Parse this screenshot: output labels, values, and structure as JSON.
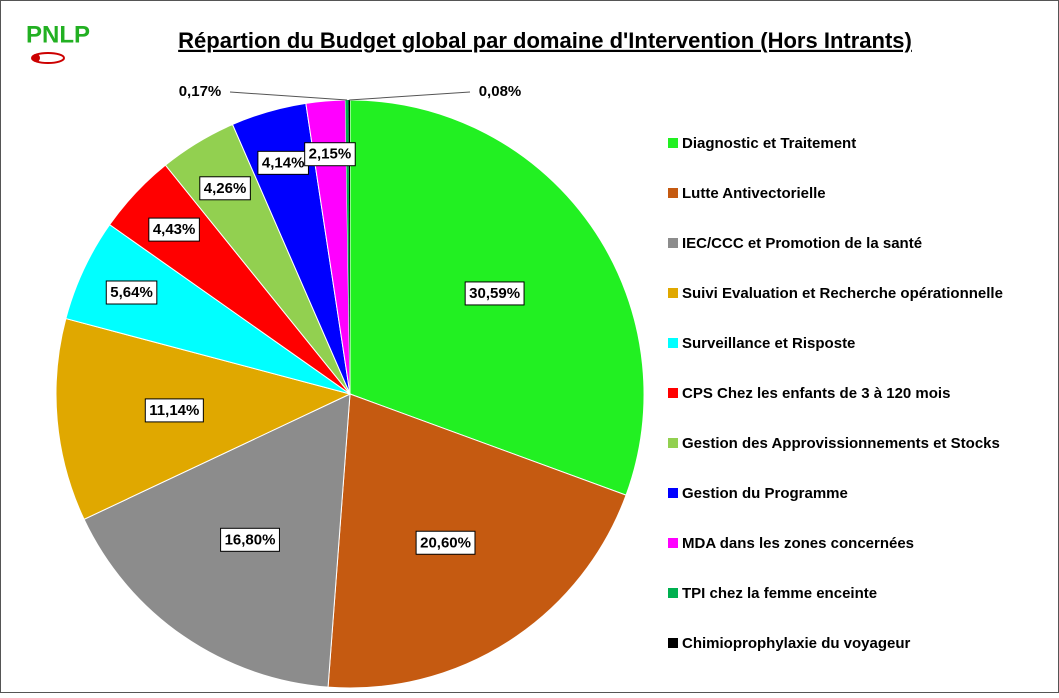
{
  "logo": "PNLP",
  "chart_data": {
    "type": "pie",
    "title": "Répartion du Budget global par domaine d'Intervention (Hors Intrants)",
    "categories": [
      "Diagnostic et Traitement",
      "Lutte Antivectorielle",
      "IEC/CCC et Promotion de la santé",
      "Suivi Evaluation et Recherche opérationnelle",
      "Surveillance et Risposte",
      "CPS Chez les enfants de 3 à 120 mois",
      "Gestion des Approvissionnements et Stocks",
      "Gestion du Programme",
      "MDA dans les zones concernées",
      "TPI chez la femme enceinte",
      "Chimioprophylaxie du voyageur"
    ],
    "values": [
      30.59,
      20.6,
      16.8,
      11.14,
      5.64,
      4.43,
      4.26,
      4.14,
      2.15,
      0.17,
      0.08
    ],
    "value_labels": [
      "30,59%",
      "20,60%",
      "16,80%",
      "11,14%",
      "5,64%",
      "4,43%",
      "4,26%",
      "4,14%",
      "2,15%",
      "0,17%",
      "0,08%"
    ],
    "colors": [
      "#22f022",
      "#c55a11",
      "#8c8c8c",
      "#e0a800",
      "#00ffff",
      "#ff0000",
      "#92d050",
      "#0000ff",
      "#ff00ff",
      "#00b050",
      "#000000"
    ],
    "legend": "right"
  }
}
